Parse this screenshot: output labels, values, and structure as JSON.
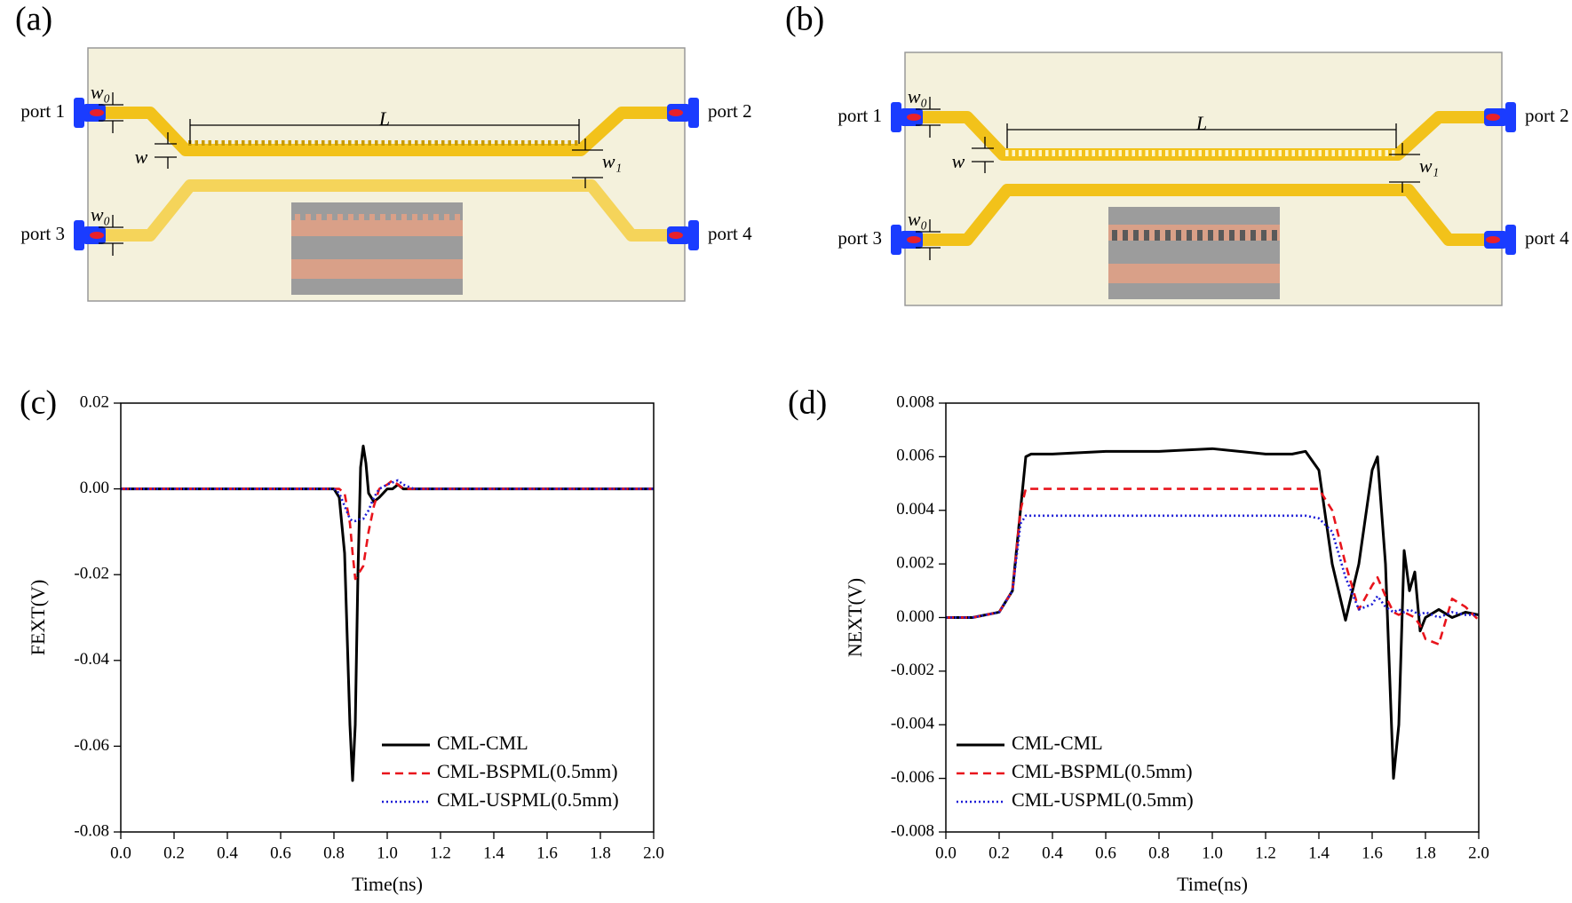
{
  "panels": [
    {
      "label": "(a)",
      "ports": [
        "port 1",
        "port 2",
        "port 3",
        "port 4"
      ],
      "dimensions": [
        "w₀",
        "w",
        "w₁",
        "L",
        "w₀"
      ]
    },
    {
      "label": "(b)",
      "ports": [
        "port 1",
        "port 2",
        "port 3",
        "port 4"
      ],
      "dimensions": [
        "w₀",
        "w",
        "w₁",
        "L",
        "w₀"
      ]
    }
  ],
  "chart_data": [
    {
      "type": "line",
      "panel": "(c)",
      "x_label": "Time(ns)",
      "y_label": "FEXT(V)",
      "legend": "lower right",
      "xlim": [
        0,
        2
      ],
      "xticks": [
        {
          "value": 0,
          "label": "0.0"
        },
        0.2,
        0.4,
        0.6,
        0.8,
        {
          "value": 1,
          "label": "1.0"
        },
        1.2,
        1.4,
        1.6,
        1.8,
        {
          "value": 2,
          "label": "2.0"
        }
      ],
      "ylim": [
        -0.08,
        0.02
      ],
      "yticks": [
        -0.08,
        -0.06,
        -0.04,
        -0.02,
        {
          "value": 0,
          "label": "0.00"
        },
        0.02
      ],
      "x": [
        0,
        0.2,
        0.4,
        0.6,
        0.78,
        0.8,
        0.82,
        0.84,
        0.86,
        0.87,
        0.88,
        0.89,
        0.9,
        0.91,
        0.92,
        0.93,
        0.95,
        0.97,
        1.0,
        1.02,
        1.04,
        1.06,
        1.1,
        1.2,
        1.4,
        1.6,
        1.8,
        2.0
      ],
      "series": [
        {
          "name": "CML-CML",
          "color": "#000000",
          "style": "solid",
          "values": [
            0,
            0,
            0,
            0,
            0,
            0,
            -0.002,
            -0.015,
            -0.055,
            -0.068,
            -0.055,
            -0.02,
            0.005,
            0.01,
            0.006,
            -0.001,
            -0.003,
            -0.002,
            0.0,
            0.0,
            0.001,
            0.0,
            0,
            0,
            0,
            0,
            0,
            0
          ]
        },
        {
          "name": "CML-BSPML(0.5mm)",
          "color": "#e8141c",
          "style": "dashed",
          "values": [
            0,
            0,
            0,
            0,
            0,
            0,
            0,
            -0.001,
            -0.008,
            -0.015,
            -0.021,
            -0.02,
            -0.019,
            -0.018,
            -0.014,
            -0.01,
            -0.004,
            0.0,
            0.001,
            0.002,
            0.001,
            0.0,
            0,
            0,
            0,
            0,
            0,
            0
          ]
        },
        {
          "name": "CML-USPML(0.5mm)",
          "color": "#1c1cd6",
          "style": "dotted",
          "values": [
            0,
            0,
            0,
            0,
            0,
            0,
            -0.001,
            -0.004,
            -0.007,
            -0.0075,
            -0.0075,
            -0.0072,
            -0.007,
            -0.007,
            -0.006,
            -0.005,
            -0.002,
            0.0,
            0.001,
            0.0015,
            0.002,
            0.001,
            0,
            0,
            0,
            0,
            0,
            0
          ]
        }
      ]
    },
    {
      "type": "line",
      "panel": "(d)",
      "x_label": "Time(ns)",
      "y_label": "NEXT(V)",
      "legend": "lower left",
      "xlim": [
        0,
        2
      ],
      "xticks": [
        {
          "value": 0,
          "label": "0.0"
        },
        0.2,
        0.4,
        0.6,
        0.8,
        {
          "value": 1,
          "label": "1.0"
        },
        1.2,
        1.4,
        1.6,
        1.8,
        {
          "value": 2,
          "label": "2.0"
        }
      ],
      "ylim": [
        -0.008,
        0.008
      ],
      "yticks": [
        -0.008,
        -0.006,
        -0.004,
        -0.002,
        {
          "value": 0,
          "label": "0.000"
        },
        0.002,
        0.004,
        0.006,
        0.008
      ],
      "x": [
        0,
        0.1,
        0.2,
        0.25,
        0.28,
        0.3,
        0.32,
        0.4,
        0.6,
        0.8,
        1.0,
        1.2,
        1.3,
        1.35,
        1.4,
        1.45,
        1.5,
        1.55,
        1.6,
        1.62,
        1.65,
        1.68,
        1.7,
        1.72,
        1.74,
        1.76,
        1.78,
        1.8,
        1.85,
        1.9,
        1.95,
        2.0
      ],
      "series": [
        {
          "name": "CML-CML",
          "color": "#000000",
          "style": "solid",
          "values": [
            0,
            0,
            0.0002,
            0.001,
            0.004,
            0.006,
            0.0061,
            0.0061,
            0.0062,
            0.0062,
            0.0063,
            0.0061,
            0.0061,
            0.0062,
            0.0055,
            0.002,
            -0.0001,
            0.002,
            0.0055,
            0.006,
            0.002,
            -0.006,
            -0.004,
            0.0025,
            0.001,
            0.0017,
            -0.0005,
            0.0,
            0.0003,
            0.0,
            0.0002,
            0.0001
          ]
        },
        {
          "name": "CML-BSPML(0.5mm)",
          "color": "#e8141c",
          "style": "dashed",
          "values": [
            0,
            0,
            0.0002,
            0.001,
            0.004,
            0.0048,
            0.0048,
            0.0048,
            0.0048,
            0.0048,
            0.0048,
            0.0048,
            0.0048,
            0.0048,
            0.0048,
            0.004,
            0.002,
            0.0003,
            0.0012,
            0.0015,
            0.0008,
            0.0002,
            0.0001,
            0.0002,
            0.0001,
            0.0,
            -0.0003,
            -0.0008,
            -0.001,
            0.0007,
            0.0004,
            -0.0001
          ]
        },
        {
          "name": "CML-USPML(0.5mm)",
          "color": "#1c1cd6",
          "style": "dotted",
          "values": [
            0,
            0,
            0.0002,
            0.001,
            0.0035,
            0.0038,
            0.0038,
            0.0038,
            0.0038,
            0.0038,
            0.0038,
            0.0038,
            0.0038,
            0.0038,
            0.0037,
            0.0032,
            0.0015,
            0.0003,
            0.0005,
            0.0008,
            0.0004,
            0.0002,
            0.0003,
            0.0002,
            0.0003,
            0.0002,
            0.0001,
            0.0002,
            0.0,
            0.0002,
            0.0001,
            0.0001
          ]
        }
      ]
    }
  ]
}
